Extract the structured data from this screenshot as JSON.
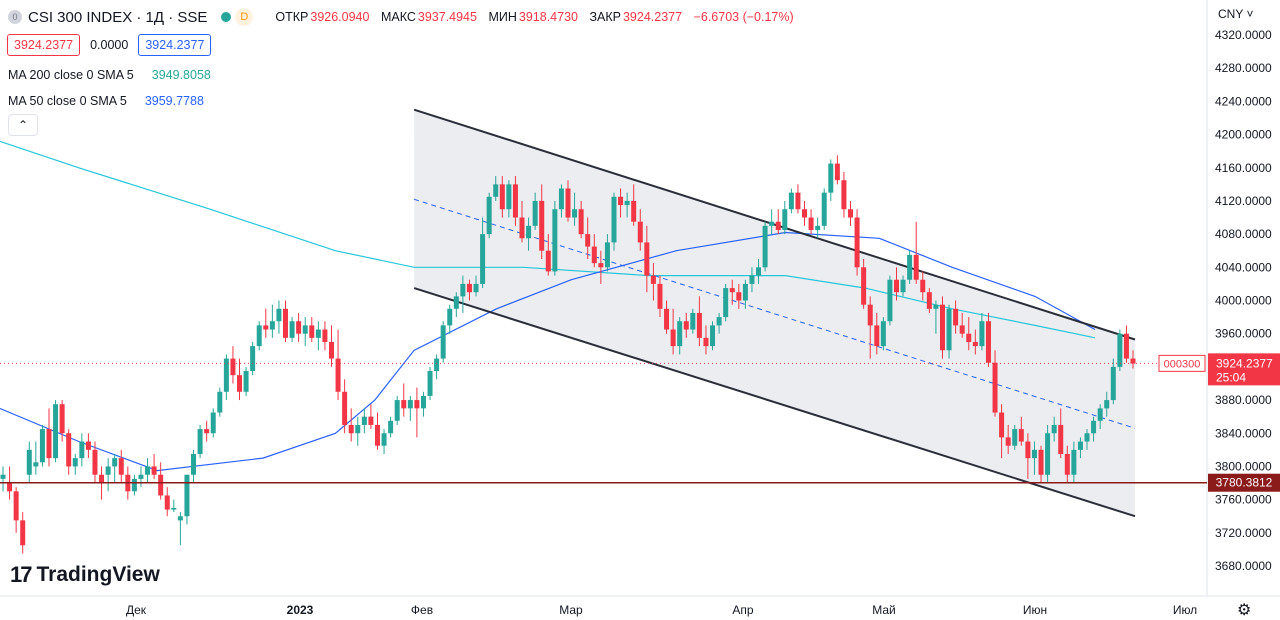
{
  "header": {
    "symbol_logo": "0",
    "symbol": "CSI 300 INDEX · 1Д · SSE",
    "badge_d": "D",
    "open_label": "ОТКР",
    "open_value": "3926.0940",
    "high_label": "МАКС",
    "high_value": "3937.4945",
    "low_label": "МИН",
    "low_value": "3918.4730",
    "close_label": "ЗАКР",
    "close_value": "3924.2377",
    "change": "−6.6703 (−0.17%)"
  },
  "price_box": {
    "bid": "3924.2377",
    "spread": "0.0000",
    "ask": "3924.2377"
  },
  "indicators": {
    "ma200": {
      "label": "MA 200 close 0 SMA 5",
      "value": "3949.8058"
    },
    "ma50": {
      "label": "MA 50 close 0 SMA 5",
      "value": "3959.7788"
    },
    "collapse_icon": "chevron-up-icon"
  },
  "currency": "CNY",
  "brand": {
    "mark": "17",
    "name": "TradingView"
  },
  "colors": {
    "up": "#26a69a",
    "down": "#f23645",
    "ma200": "#26c6da",
    "ma50": "#2962ff",
    "hline": "#8b1a1a",
    "channel_fill": "#e9eaed"
  },
  "chart_data": {
    "type": "candlestick",
    "y_ticks": [
      "4320.0000",
      "4280.0000",
      "4240.0000",
      "4200.0000",
      "4160.0000",
      "4120.0000",
      "4080.0000",
      "4040.0000",
      "4000.0000",
      "3960.0000",
      "3920.0000",
      "3880.0000",
      "3840.0000",
      "3800.0000",
      "3760.0000",
      "3720.0000",
      "3680.0000"
    ],
    "ylim": [
      3665,
      4340
    ],
    "x_ticks": [
      "Дек",
      "2023",
      "Фев",
      "Мар",
      "Апр",
      "Май",
      "Июн",
      "Июл"
    ],
    "last_price_tag": "3924.2377",
    "countdown": "25:04",
    "symbol_tag": "000300",
    "horizontal_level": {
      "value": 3780.3812,
      "label": "3780.3812"
    },
    "channel": {
      "upper": [
        [
          "2023-01-30",
          4230
        ],
        [
          "2023-06-21",
          3953
        ]
      ],
      "lower": [
        [
          "2023-01-30",
          4015
        ],
        [
          "2023-06-21",
          3740
        ]
      ],
      "median": [
        [
          "2023-01-30",
          4122
        ],
        [
          "2023-06-21",
          3846
        ]
      ]
    },
    "ma200": [
      [
        "2022-11-01",
        4200
      ],
      [
        "2022-11-20",
        4160
      ],
      [
        "2022-12-15",
        4110
      ],
      [
        "2023-01-10",
        4060
      ],
      [
        "2023-01-30",
        4040
      ],
      [
        "2023-02-20",
        4040
      ],
      [
        "2023-03-15",
        4030
      ],
      [
        "2023-04-10",
        4030
      ],
      [
        "2023-04-27",
        4015
      ],
      [
        "2023-05-15",
        3990
      ],
      [
        "2023-06-01",
        3970
      ],
      [
        "2023-06-13",
        3955
      ]
    ],
    "ma50": [
      [
        "2022-11-01",
        3880
      ],
      [
        "2022-11-20",
        3830
      ],
      [
        "2022-12-05",
        3795
      ],
      [
        "2022-12-25",
        3810
      ],
      [
        "2023-01-10",
        3840
      ],
      [
        "2023-01-20",
        3880
      ],
      [
        "2023-01-30",
        3940
      ],
      [
        "2023-02-15",
        3990
      ],
      [
        "2023-03-01",
        4025
      ],
      [
        "2023-03-20",
        4060
      ],
      [
        "2023-04-10",
        4082
      ],
      [
        "2023-04-30",
        4075
      ],
      [
        "2023-05-15",
        4040
      ],
      [
        "2023-06-01",
        4005
      ],
      [
        "2023-06-13",
        3965
      ]
    ],
    "candles": [
      {
        "o": 3785,
        "h": 3800,
        "l": 3770,
        "c": 3790
      },
      {
        "o": 3780,
        "h": 3800,
        "l": 3760,
        "c": 3770
      },
      {
        "o": 3770,
        "h": 3775,
        "l": 3720,
        "c": 3735
      },
      {
        "o": 3735,
        "h": 3745,
        "l": 3695,
        "c": 3705
      },
      {
        "o": 3790,
        "h": 3830,
        "l": 3780,
        "c": 3820
      },
      {
        "o": 3800,
        "h": 3830,
        "l": 3790,
        "c": 3805
      },
      {
        "o": 3805,
        "h": 3850,
        "l": 3800,
        "c": 3845
      },
      {
        "o": 3845,
        "h": 3870,
        "l": 3800,
        "c": 3810
      },
      {
        "o": 3810,
        "h": 3880,
        "l": 3805,
        "c": 3875
      },
      {
        "o": 3875,
        "h": 3880,
        "l": 3830,
        "c": 3840
      },
      {
        "o": 3840,
        "h": 3845,
        "l": 3790,
        "c": 3800
      },
      {
        "o": 3800,
        "h": 3815,
        "l": 3790,
        "c": 3810
      },
      {
        "o": 3810,
        "h": 3840,
        "l": 3800,
        "c": 3830
      },
      {
        "o": 3830,
        "h": 3840,
        "l": 3810,
        "c": 3820
      },
      {
        "o": 3820,
        "h": 3830,
        "l": 3780,
        "c": 3790
      },
      {
        "o": 3790,
        "h": 3800,
        "l": 3760,
        "c": 3780
      },
      {
        "o": 3790,
        "h": 3810,
        "l": 3770,
        "c": 3800
      },
      {
        "o": 3800,
        "h": 3815,
        "l": 3780,
        "c": 3810
      },
      {
        "o": 3810,
        "h": 3820,
        "l": 3780,
        "c": 3790
      },
      {
        "o": 3790,
        "h": 3800,
        "l": 3760,
        "c": 3770
      },
      {
        "o": 3770,
        "h": 3790,
        "l": 3765,
        "c": 3785
      },
      {
        "o": 3785,
        "h": 3800,
        "l": 3775,
        "c": 3790
      },
      {
        "o": 3790,
        "h": 3810,
        "l": 3780,
        "c": 3800
      },
      {
        "o": 3800,
        "h": 3815,
        "l": 3785,
        "c": 3790
      },
      {
        "o": 3790,
        "h": 3805,
        "l": 3760,
        "c": 3765
      },
      {
        "o": 3765,
        "h": 3775,
        "l": 3740,
        "c": 3748
      },
      {
        "o": 3748,
        "h": 3760,
        "l": 3745,
        "c": 3750
      },
      {
        "o": 3735,
        "h": 3745,
        "l": 3705,
        "c": 3740
      },
      {
        "o": 3740,
        "h": 3790,
        "l": 3730,
        "c": 3790
      },
      {
        "o": 3790,
        "h": 3820,
        "l": 3780,
        "c": 3815
      },
      {
        "o": 3815,
        "h": 3850,
        "l": 3810,
        "c": 3845
      },
      {
        "o": 3845,
        "h": 3855,
        "l": 3830,
        "c": 3840
      },
      {
        "o": 3840,
        "h": 3870,
        "l": 3835,
        "c": 3865
      },
      {
        "o": 3865,
        "h": 3895,
        "l": 3860,
        "c": 3890
      },
      {
        "o": 3890,
        "h": 3935,
        "l": 3880,
        "c": 3930
      },
      {
        "o": 3930,
        "h": 3945,
        "l": 3900,
        "c": 3910
      },
      {
        "o": 3910,
        "h": 3930,
        "l": 3880,
        "c": 3890
      },
      {
        "o": 3890,
        "h": 3920,
        "l": 3885,
        "c": 3915
      },
      {
        "o": 3915,
        "h": 3950,
        "l": 3910,
        "c": 3945
      },
      {
        "o": 3945,
        "h": 3975,
        "l": 3940,
        "c": 3970
      },
      {
        "o": 3970,
        "h": 3990,
        "l": 3955,
        "c": 3965
      },
      {
        "o": 3965,
        "h": 3995,
        "l": 3955,
        "c": 3975
      },
      {
        "o": 3975,
        "h": 4000,
        "l": 3960,
        "c": 3990
      },
      {
        "o": 3990,
        "h": 4000,
        "l": 3950,
        "c": 3955
      },
      {
        "o": 3955,
        "h": 3980,
        "l": 3950,
        "c": 3975
      },
      {
        "o": 3975,
        "h": 3985,
        "l": 3950,
        "c": 3960
      },
      {
        "o": 3960,
        "h": 3980,
        "l": 3945,
        "c": 3970
      },
      {
        "o": 3970,
        "h": 3980,
        "l": 3950,
        "c": 3955
      },
      {
        "o": 3955,
        "h": 3975,
        "l": 3940,
        "c": 3965
      },
      {
        "o": 3965,
        "h": 3975,
        "l": 3940,
        "c": 3950
      },
      {
        "o": 3950,
        "h": 3970,
        "l": 3920,
        "c": 3930
      },
      {
        "o": 3930,
        "h": 3965,
        "l": 3880,
        "c": 3890
      },
      {
        "o": 3890,
        "h": 3905,
        "l": 3840,
        "c": 3850
      },
      {
        "o": 3850,
        "h": 3870,
        "l": 3830,
        "c": 3840
      },
      {
        "o": 3840,
        "h": 3860,
        "l": 3825,
        "c": 3850
      },
      {
        "o": 3850,
        "h": 3870,
        "l": 3840,
        "c": 3860
      },
      {
        "o": 3860,
        "h": 3875,
        "l": 3845,
        "c": 3850
      },
      {
        "o": 3850,
        "h": 3865,
        "l": 3820,
        "c": 3825
      },
      {
        "o": 3825,
        "h": 3845,
        "l": 3815,
        "c": 3840
      },
      {
        "o": 3840,
        "h": 3860,
        "l": 3835,
        "c": 3855
      },
      {
        "o": 3855,
        "h": 3885,
        "l": 3850,
        "c": 3880
      },
      {
        "o": 3880,
        "h": 3900,
        "l": 3860,
        "c": 3870
      },
      {
        "o": 3870,
        "h": 3885,
        "l": 3855,
        "c": 3880
      },
      {
        "o": 3880,
        "h": 3895,
        "l": 3835,
        "c": 3870
      },
      {
        "o": 3870,
        "h": 3890,
        "l": 3860,
        "c": 3885
      },
      {
        "o": 3885,
        "h": 3920,
        "l": 3880,
        "c": 3915
      },
      {
        "o": 3915,
        "h": 3935,
        "l": 3905,
        "c": 3930
      },
      {
        "o": 3930,
        "h": 3975,
        "l": 3925,
        "c": 3970
      },
      {
        "o": 3970,
        "h": 3995,
        "l": 3960,
        "c": 3990
      },
      {
        "o": 3990,
        "h": 4010,
        "l": 3980,
        "c": 4005
      },
      {
        "o": 4005,
        "h": 4030,
        "l": 3985,
        "c": 4020
      },
      {
        "o": 4020,
        "h": 4025,
        "l": 4000,
        "c": 4010
      },
      {
        "o": 4010,
        "h": 4030,
        "l": 4005,
        "c": 4020
      },
      {
        "o": 4020,
        "h": 4100,
        "l": 4015,
        "c": 4080
      },
      {
        "o": 4080,
        "h": 4130,
        "l": 4075,
        "c": 4125
      },
      {
        "o": 4125,
        "h": 4150,
        "l": 4120,
        "c": 4140
      },
      {
        "o": 4140,
        "h": 4150,
        "l": 4100,
        "c": 4110
      },
      {
        "o": 4110,
        "h": 4145,
        "l": 4100,
        "c": 4140
      },
      {
        "o": 4140,
        "h": 4150,
        "l": 4090,
        "c": 4100
      },
      {
        "o": 4100,
        "h": 4120,
        "l": 4070,
        "c": 4075
      },
      {
        "o": 4075,
        "h": 4100,
        "l": 4060,
        "c": 4090
      },
      {
        "o": 4090,
        "h": 4130,
        "l": 4085,
        "c": 4120
      },
      {
        "o": 4120,
        "h": 4140,
        "l": 4050,
        "c": 4060
      },
      {
        "o": 4060,
        "h": 4080,
        "l": 4030,
        "c": 4035
      },
      {
        "o": 4035,
        "h": 4120,
        "l": 4030,
        "c": 4110
      },
      {
        "o": 4110,
        "h": 4140,
        "l": 4100,
        "c": 4135
      },
      {
        "o": 4135,
        "h": 4145,
        "l": 4095,
        "c": 4100
      },
      {
        "o": 4100,
        "h": 4130,
        "l": 4090,
        "c": 4110
      },
      {
        "o": 4110,
        "h": 4120,
        "l": 4075,
        "c": 4080
      },
      {
        "o": 4080,
        "h": 4100,
        "l": 4050,
        "c": 4065
      },
      {
        "o": 4065,
        "h": 4080,
        "l": 4040,
        "c": 4045
      },
      {
        "o": 4045,
        "h": 4060,
        "l": 4020,
        "c": 4040
      },
      {
        "o": 4040,
        "h": 4080,
        "l": 4035,
        "c": 4070
      },
      {
        "o": 4070,
        "h": 4130,
        "l": 4060,
        "c": 4125
      },
      {
        "o": 4125,
        "h": 4135,
        "l": 4100,
        "c": 4115
      },
      {
        "o": 4115,
        "h": 4130,
        "l": 4100,
        "c": 4120
      },
      {
        "o": 4120,
        "h": 4140,
        "l": 4090,
        "c": 4095
      },
      {
        "o": 4095,
        "h": 4110,
        "l": 4060,
        "c": 4070
      },
      {
        "o": 4070,
        "h": 4090,
        "l": 4010,
        "c": 4030
      },
      {
        "o": 4030,
        "h": 4045,
        "l": 4000,
        "c": 4020
      },
      {
        "o": 4020,
        "h": 4030,
        "l": 3980,
        "c": 3990
      },
      {
        "o": 3990,
        "h": 4000,
        "l": 3960,
        "c": 3965
      },
      {
        "o": 3965,
        "h": 3990,
        "l": 3935,
        "c": 3945
      },
      {
        "o": 3945,
        "h": 3980,
        "l": 3935,
        "c": 3975
      },
      {
        "o": 3975,
        "h": 3985,
        "l": 3955,
        "c": 3965
      },
      {
        "o": 3965,
        "h": 3990,
        "l": 3960,
        "c": 3985
      },
      {
        "o": 3985,
        "h": 4005,
        "l": 3945,
        "c": 3955
      },
      {
        "o": 3955,
        "h": 3970,
        "l": 3935,
        "c": 3945
      },
      {
        "o": 3945,
        "h": 3975,
        "l": 3940,
        "c": 3970
      },
      {
        "o": 3970,
        "h": 3985,
        "l": 3960,
        "c": 3980
      },
      {
        "o": 3980,
        "h": 4020,
        "l": 3975,
        "c": 4015
      },
      {
        "o": 4015,
        "h": 4025,
        "l": 3995,
        "c": 4010
      },
      {
        "o": 4010,
        "h": 4020,
        "l": 3990,
        "c": 4000
      },
      {
        "o": 4000,
        "h": 4025,
        "l": 3990,
        "c": 4020
      },
      {
        "o": 4020,
        "h": 4040,
        "l": 4010,
        "c": 4030
      },
      {
        "o": 4030,
        "h": 4050,
        "l": 4020,
        "c": 4040
      },
      {
        "o": 4040,
        "h": 4095,
        "l": 4035,
        "c": 4090
      },
      {
        "o": 4090,
        "h": 4110,
        "l": 4080,
        "c": 4095
      },
      {
        "o": 4095,
        "h": 4110,
        "l": 4080,
        "c": 4085
      },
      {
        "o": 4085,
        "h": 4120,
        "l": 4080,
        "c": 4110
      },
      {
        "o": 4110,
        "h": 4135,
        "l": 4105,
        "c": 4130
      },
      {
        "o": 4130,
        "h": 4140,
        "l": 4105,
        "c": 4110
      },
      {
        "o": 4110,
        "h": 4120,
        "l": 4090,
        "c": 4100
      },
      {
        "o": 4100,
        "h": 4110,
        "l": 4080,
        "c": 4085
      },
      {
        "o": 4085,
        "h": 4100,
        "l": 4075,
        "c": 4090
      },
      {
        "o": 4090,
        "h": 4135,
        "l": 4085,
        "c": 4130
      },
      {
        "o": 4130,
        "h": 4170,
        "l": 4120,
        "c": 4165
      },
      {
        "o": 4165,
        "h": 4175,
        "l": 4140,
        "c": 4145
      },
      {
        "o": 4145,
        "h": 4155,
        "l": 4100,
        "c": 4110
      },
      {
        "o": 4110,
        "h": 4120,
        "l": 4090,
        "c": 4100
      },
      {
        "o": 4100,
        "h": 4110,
        "l": 4030,
        "c": 4040
      },
      {
        "o": 4040,
        "h": 4050,
        "l": 3990,
        "c": 3995
      },
      {
        "o": 3995,
        "h": 4005,
        "l": 3930,
        "c": 3970
      },
      {
        "o": 3970,
        "h": 3985,
        "l": 3935,
        "c": 3945
      },
      {
        "o": 3945,
        "h": 3980,
        "l": 3940,
        "c": 3975
      },
      {
        "o": 3975,
        "h": 4030,
        "l": 3970,
        "c": 4025
      },
      {
        "o": 4025,
        "h": 4040,
        "l": 4000,
        "c": 4010
      },
      {
        "o": 4010,
        "h": 4030,
        "l": 4005,
        "c": 4025
      },
      {
        "o": 4025,
        "h": 4060,
        "l": 4020,
        "c": 4055
      },
      {
        "o": 4055,
        "h": 4095,
        "l": 4020,
        "c": 4025
      },
      {
        "o": 4025,
        "h": 4035,
        "l": 4000,
        "c": 4010
      },
      {
        "o": 4010,
        "h": 4015,
        "l": 3985,
        "c": 3990
      },
      {
        "o": 3990,
        "h": 4000,
        "l": 3960,
        "c": 3995
      },
      {
        "o": 3995,
        "h": 4005,
        "l": 3930,
        "c": 3940
      },
      {
        "o": 3940,
        "h": 3995,
        "l": 3930,
        "c": 3990
      },
      {
        "o": 3990,
        "h": 4000,
        "l": 3960,
        "c": 3970
      },
      {
        "o": 3970,
        "h": 3985,
        "l": 3955,
        "c": 3960
      },
      {
        "o": 3960,
        "h": 3980,
        "l": 3940,
        "c": 3950
      },
      {
        "o": 3950,
        "h": 3965,
        "l": 3935,
        "c": 3945
      },
      {
        "o": 3945,
        "h": 3985,
        "l": 3940,
        "c": 3975
      },
      {
        "o": 3975,
        "h": 3985,
        "l": 3920,
        "c": 3925
      },
      {
        "o": 3925,
        "h": 3940,
        "l": 3860,
        "c": 3865
      },
      {
        "o": 3865,
        "h": 3875,
        "l": 3810,
        "c": 3835
      },
      {
        "o": 3835,
        "h": 3850,
        "l": 3815,
        "c": 3825
      },
      {
        "o": 3825,
        "h": 3850,
        "l": 3820,
        "c": 3845
      },
      {
        "o": 3845,
        "h": 3860,
        "l": 3825,
        "c": 3830
      },
      {
        "o": 3830,
        "h": 3840,
        "l": 3785,
        "c": 3810
      },
      {
        "o": 3810,
        "h": 3830,
        "l": 3790,
        "c": 3820
      },
      {
        "o": 3820,
        "h": 3825,
        "l": 3780,
        "c": 3790
      },
      {
        "o": 3790,
        "h": 3850,
        "l": 3780,
        "c": 3840
      },
      {
        "o": 3840,
        "h": 3860,
        "l": 3830,
        "c": 3850
      },
      {
        "o": 3850,
        "h": 3870,
        "l": 3810,
        "c": 3815
      },
      {
        "o": 3815,
        "h": 3825,
        "l": 3780,
        "c": 3790
      },
      {
        "o": 3790,
        "h": 3830,
        "l": 3780,
        "c": 3820
      },
      {
        "o": 3820,
        "h": 3835,
        "l": 3810,
        "c": 3830
      },
      {
        "o": 3830,
        "h": 3845,
        "l": 3820,
        "c": 3840
      },
      {
        "o": 3840,
        "h": 3860,
        "l": 3830,
        "c": 3855
      },
      {
        "o": 3855,
        "h": 3875,
        "l": 3845,
        "c": 3870
      },
      {
        "o": 3870,
        "h": 3890,
        "l": 3860,
        "c": 3880
      },
      {
        "o": 3880,
        "h": 3930,
        "l": 3875,
        "c": 3920
      },
      {
        "o": 3920,
        "h": 3965,
        "l": 3915,
        "c": 3960
      },
      {
        "o": 3960,
        "h": 3970,
        "l": 3925,
        "c": 3930
      },
      {
        "o": 3930,
        "h": 3940,
        "l": 3918,
        "c": 3924
      }
    ]
  }
}
